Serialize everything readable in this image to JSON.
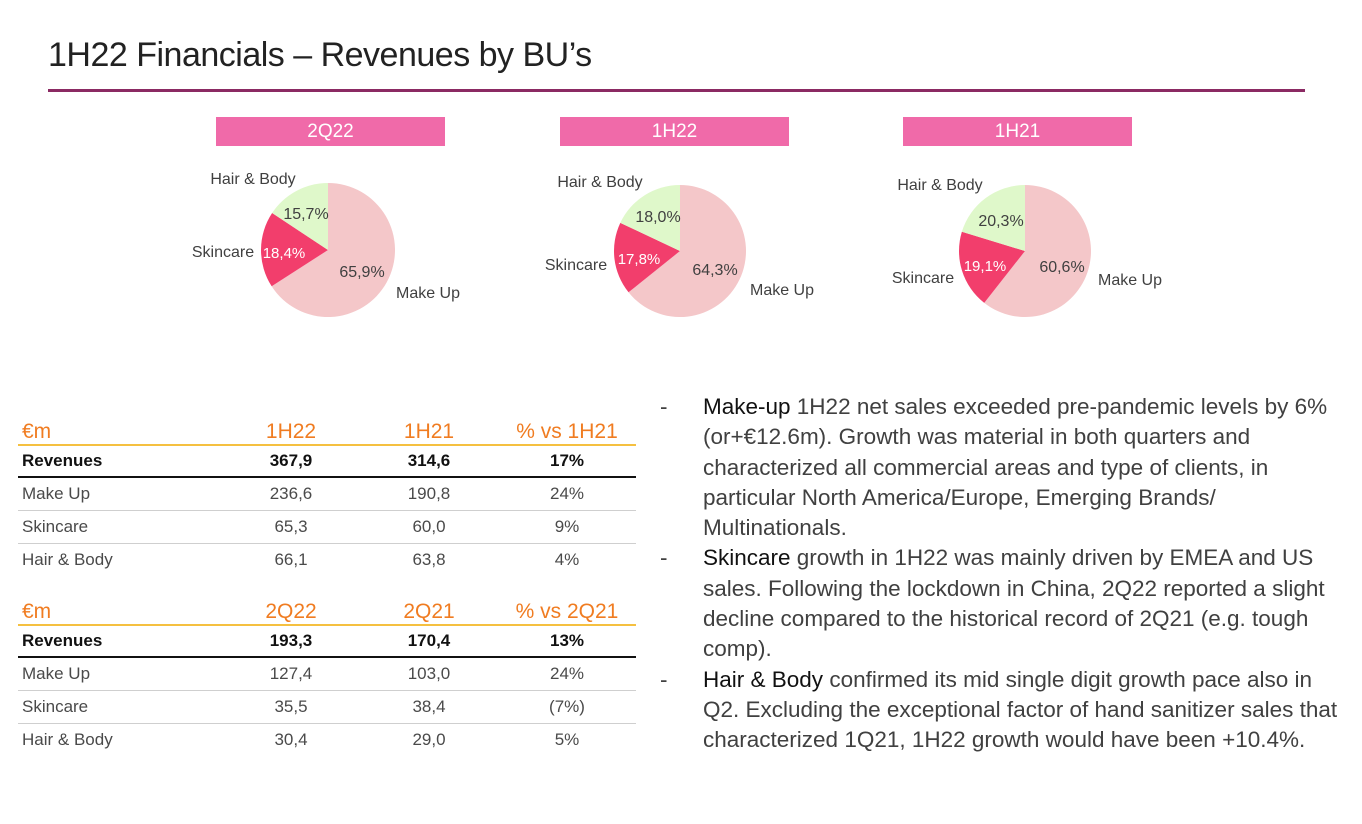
{
  "title": "1H22 Financials – Revenues by BU’s",
  "colors": {
    "accent": "#f06aa9",
    "rule": "#8b2a63",
    "orange": "#f07c21",
    "makeup": "#f4c7c9",
    "skincare": "#f23e6c",
    "hair": "#dff8ca"
  },
  "chart_data": [
    {
      "type": "pie",
      "title": "2Q22",
      "slices": [
        {
          "label": "Make Up",
          "value": 65.9,
          "text": "65,9%"
        },
        {
          "label": "Skincare",
          "value": 18.4,
          "text": "18,4%"
        },
        {
          "label": "Hair & Body",
          "value": 15.7,
          "text": "15,7%"
        }
      ]
    },
    {
      "type": "pie",
      "title": "1H22",
      "slices": [
        {
          "label": "Make Up",
          "value": 64.3,
          "text": "64,3%"
        },
        {
          "label": "Skincare",
          "value": 17.8,
          "text": "17,8%"
        },
        {
          "label": "Hair & Body",
          "value": 18.0,
          "text": "18,0%"
        }
      ]
    },
    {
      "type": "pie",
      "title": "1H21",
      "slices": [
        {
          "label": "Make Up",
          "value": 60.6,
          "text": "60,6%"
        },
        {
          "label": "Skincare",
          "value": 19.1,
          "text": "19,1%"
        },
        {
          "label": "Hair & Body",
          "value": 20.3,
          "text": "20,3%"
        }
      ]
    },
    {
      "type": "table",
      "tables": [
        {
          "headers": [
            "€m",
            "1H22",
            "1H21",
            "% vs 1H21"
          ],
          "rows": [
            [
              "Revenues",
              "367,9",
              "314,6",
              "17%"
            ],
            [
              "Make Up",
              "236,6",
              "190,8",
              "24%"
            ],
            [
              "Skincare",
              "65,3",
              "60,0",
              "9%"
            ],
            [
              "Hair & Body",
              "66,1",
              "63,8",
              "4%"
            ]
          ]
        },
        {
          "headers": [
            "€m",
            "2Q22",
            "2Q21",
            "% vs 2Q21"
          ],
          "rows": [
            [
              "Revenues",
              "193,3",
              "170,4",
              "13%"
            ],
            [
              "Make Up",
              "127,4",
              "103,0",
              "24%"
            ],
            [
              "Skincare",
              "35,5",
              "38,4",
              "(7%)"
            ],
            [
              "Hair & Body",
              "30,4",
              "29,0",
              "5%"
            ]
          ]
        }
      ]
    }
  ],
  "bullets": [
    {
      "dash": "-",
      "head": "Make-up",
      "text": " 1H22 net sales exceeded pre-pandemic levels by 6% (or+€12.6m). Growth was material in both quarters and characterized all commercial areas and type of clients, in particular North America/Europe, Emerging Brands/ Multinationals."
    },
    {
      "dash": "-",
      "head": "Skincare",
      "text": " growth in 1H22 was mainly driven by EMEA and US sales. Following the lockdown in China, 2Q22 reported a slight decline compared to the historical record of 2Q21 (e.g. tough comp)."
    },
    {
      "dash": "-",
      "head": "Hair & Body",
      "text": " confirmed its mid single digit growth pace also in Q2. Excluding the exceptional factor of hand sanitizer sales that characterized 1Q21, 1H22 growth would have been +10.4%."
    }
  ]
}
